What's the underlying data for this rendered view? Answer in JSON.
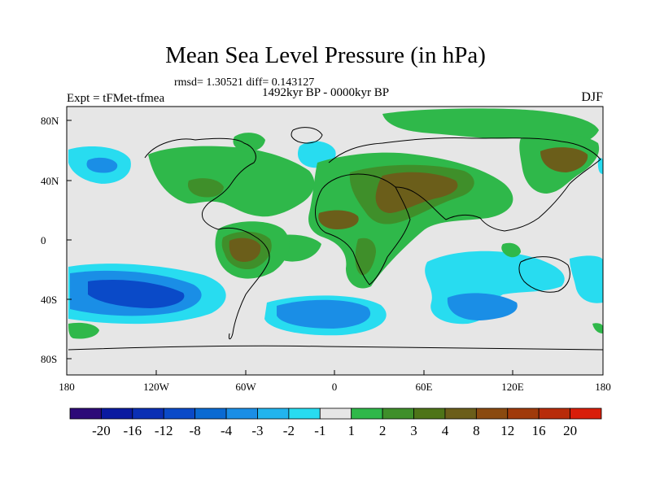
{
  "title": "Mean Sea Level Pressure (in hPa)",
  "stats_text": "rmsd= 1.30521 diff= 0.143127",
  "period_text": "1492kyr BP - 0000kyr BP",
  "experiment_text": "Expt = tFMet-tfmea",
  "season": "DJF",
  "lat_labels": [
    "80N",
    "40N",
    "0",
    "40S",
    "80S"
  ],
  "lon_labels": [
    "180",
    "120W",
    "60W",
    "0",
    "60E",
    "120E",
    "180"
  ],
  "colorbar": {
    "colors": [
      "#2d0a78",
      "#0a1aa0",
      "#0a2fb4",
      "#0a4ac8",
      "#0a6ad2",
      "#1a8ee6",
      "#22b4ee",
      "#28dcf0",
      "#e6e6e6",
      "#2fb84a",
      "#3f8f2a",
      "#4e7418",
      "#6b5e1a",
      "#8a4a10",
      "#a03a0a",
      "#b82c0a",
      "#d81e0a"
    ],
    "labels": [
      "-20",
      "-16",
      "-12",
      "-8",
      "-4",
      "-3",
      "-2",
      "-1",
      "1",
      "2",
      "3",
      "4",
      "8",
      "12",
      "16",
      "20"
    ]
  },
  "field_colors": {
    "neutral": "#e6e6e6",
    "pos1": "#2fb84a",
    "pos2": "#3f8f2a",
    "pos3": "#6b5e1a",
    "neg1": "#28dcf0",
    "neg2": "#1a8ee6",
    "neg3": "#0a4ac8"
  }
}
